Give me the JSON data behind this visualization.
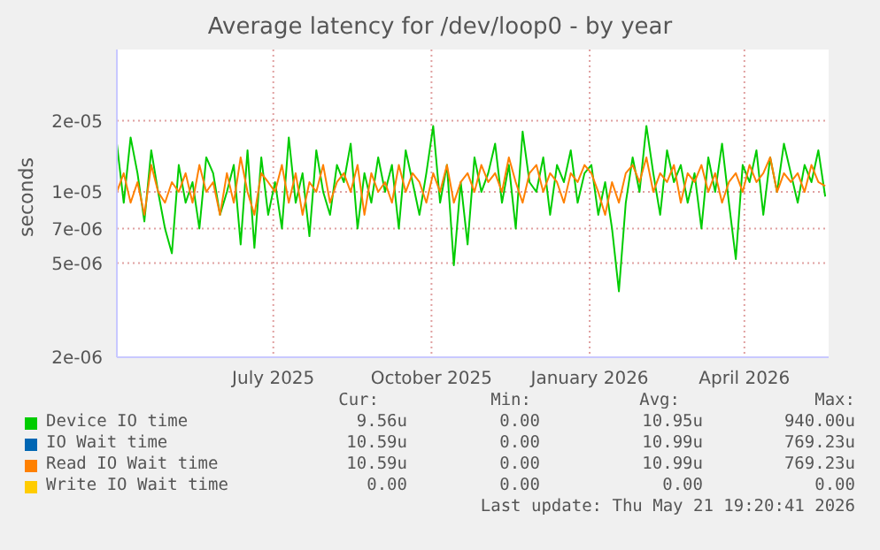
{
  "chart_data": {
    "type": "line",
    "title": "Average latency for /dev/loop0 - by year",
    "ylabel": "seconds",
    "x": [
      "2025-04-01",
      "2025-04-05",
      "2025-04-09",
      "2025-04-13",
      "2025-04-17",
      "2025-04-21",
      "2025-04-25",
      "2025-04-29",
      "2025-05-03",
      "2025-05-07",
      "2025-05-11",
      "2025-05-15",
      "2025-05-19",
      "2025-05-23",
      "2025-05-27",
      "2025-05-31",
      "2025-06-04",
      "2025-06-08",
      "2025-06-12",
      "2025-06-16",
      "2025-06-20",
      "2025-06-24",
      "2025-06-28",
      "2025-07-02",
      "2025-07-06",
      "2025-07-10",
      "2025-07-14",
      "2025-07-18",
      "2025-07-22",
      "2025-07-26",
      "2025-07-30",
      "2025-08-03",
      "2025-08-07",
      "2025-08-11",
      "2025-08-15",
      "2025-08-19",
      "2025-08-23",
      "2025-08-27",
      "2025-08-31",
      "2025-09-04",
      "2025-09-08",
      "2025-09-12",
      "2025-09-16",
      "2025-09-20",
      "2025-09-24",
      "2025-09-28",
      "2025-10-02",
      "2025-10-06",
      "2025-10-10",
      "2025-10-14",
      "2025-10-18",
      "2025-10-22",
      "2025-10-26",
      "2025-10-30",
      "2025-11-03",
      "2025-11-07",
      "2025-11-11",
      "2025-11-15",
      "2025-11-19",
      "2025-11-23",
      "2025-11-27",
      "2025-12-01",
      "2025-12-05",
      "2025-12-09",
      "2025-12-13",
      "2025-12-17",
      "2025-12-21",
      "2025-12-25",
      "2025-12-29",
      "2026-01-02",
      "2026-01-06",
      "2026-01-10",
      "2026-01-14",
      "2026-01-18",
      "2026-01-22",
      "2026-01-26",
      "2026-01-30",
      "2026-02-03",
      "2026-02-07",
      "2026-02-11",
      "2026-02-15",
      "2026-02-19",
      "2026-02-23",
      "2026-02-27",
      "2026-03-03",
      "2026-03-07",
      "2026-03-11",
      "2026-03-15",
      "2026-03-19",
      "2026-03-23",
      "2026-03-27",
      "2026-03-31",
      "2026-04-04",
      "2026-04-08",
      "2026-04-12",
      "2026-04-16",
      "2026-04-20",
      "2026-04-24",
      "2026-04-28",
      "2026-05-02",
      "2026-05-06",
      "2026-05-10",
      "2026-05-14",
      "2026-05-18"
    ],
    "series": [
      {
        "name": "Device IO time",
        "color": "#00cc00",
        "values": [
          1.6e-05,
          9e-06,
          1.7e-05,
          1.2e-05,
          7.5e-06,
          1.5e-05,
          1e-05,
          7e-06,
          5.5e-06,
          1.3e-05,
          9e-06,
          1.1e-05,
          7e-06,
          1.4e-05,
          1.2e-05,
          8e-06,
          1e-05,
          1.3e-05,
          6e-06,
          1.5e-05,
          5.8e-06,
          1.4e-05,
          8e-06,
          1.1e-05,
          7e-06,
          1.7e-05,
          9e-06,
          1.2e-05,
          6.5e-06,
          1.5e-05,
          1e-05,
          8e-06,
          1.3e-05,
          1.1e-05,
          1.6e-05,
          7e-06,
          1.2e-05,
          9e-06,
          1.4e-05,
          1e-05,
          1.3e-05,
          7e-06,
          1.5e-05,
          1.1e-05,
          8e-06,
          1.2e-05,
          1.9e-05,
          9e-06,
          1.3e-05,
          4.9e-06,
          1.1e-05,
          6e-06,
          1.4e-05,
          1e-05,
          1.2e-05,
          1.6e-05,
          9e-06,
          1.3e-05,
          7e-06,
          1.8e-05,
          1.1e-05,
          1e-05,
          1.4e-05,
          8e-06,
          1.3e-05,
          1.1e-05,
          1.5e-05,
          9e-06,
          1.2e-05,
          1.3e-05,
          8e-06,
          1.1e-05,
          7e-06,
          3.8e-06,
          9e-06,
          1.4e-05,
          1e-05,
          1.9e-05,
          1.2e-05,
          8e-06,
          1.5e-05,
          1.1e-05,
          1.3e-05,
          9e-06,
          1.2e-05,
          7e-06,
          1.4e-05,
          1e-05,
          1.6e-05,
          9e-06,
          5.2e-06,
          1.3e-05,
          1.1e-05,
          1.5e-05,
          8e-06,
          1.4e-05,
          1e-05,
          1.6e-05,
          1.2e-05,
          9e-06,
          1.3e-05,
          1.1e-05,
          1.5e-05,
          9.56e-06
        ]
      },
      {
        "name": "IO Wait time",
        "color": "#0066b3",
        "values": [
          null,
          null,
          null,
          null,
          null,
          null,
          null,
          null,
          null,
          null,
          null,
          null,
          null,
          null,
          null,
          null,
          null,
          null,
          null,
          null,
          null,
          null,
          null,
          null,
          null,
          null,
          null,
          null,
          null,
          null,
          null,
          null,
          null,
          null,
          null,
          null,
          null,
          null,
          null,
          null,
          null,
          null,
          null,
          null,
          null,
          null,
          null,
          null,
          null,
          null,
          null,
          null,
          null,
          null,
          null,
          null,
          null,
          null,
          null,
          null,
          null,
          null,
          null,
          null,
          null,
          null,
          null,
          null,
          null,
          null,
          null,
          null,
          null,
          null,
          null,
          null,
          null,
          null,
          null,
          null,
          null,
          null,
          null,
          null,
          null,
          null,
          null,
          null,
          null,
          null,
          null,
          null,
          null,
          null,
          null,
          null,
          null,
          null,
          null,
          null,
          null,
          null,
          null,
          null
        ]
      },
      {
        "name": "Read IO Wait time",
        "color": "#ff8000",
        "values": [
          1e-05,
          1.2e-05,
          9e-06,
          1.1e-05,
          8e-06,
          1.3e-05,
          1e-05,
          9e-06,
          1.1e-05,
          1e-05,
          1.2e-05,
          9e-06,
          1.3e-05,
          1e-05,
          1.1e-05,
          8e-06,
          1.2e-05,
          9e-06,
          1.4e-05,
          1e-05,
          8e-06,
          1.2e-05,
          1.1e-05,
          1e-05,
          1.3e-05,
          9e-06,
          1.2e-05,
          8e-06,
          1.1e-05,
          1e-05,
          1.3e-05,
          9e-06,
          1.1e-05,
          1.2e-05,
          1e-05,
          1.3e-05,
          8e-06,
          1.2e-05,
          1e-05,
          1.1e-05,
          9e-06,
          1.3e-05,
          1e-05,
          1.2e-05,
          1.1e-05,
          9e-06,
          1.2e-05,
          1e-05,
          1.3e-05,
          9e-06,
          1.1e-05,
          1.2e-05,
          1e-05,
          1.3e-05,
          1.1e-05,
          1.2e-05,
          1e-05,
          1.4e-05,
          1.1e-05,
          9e-06,
          1.2e-05,
          1.3e-05,
          1e-05,
          1.2e-05,
          1.1e-05,
          9e-06,
          1.2e-05,
          1.1e-05,
          1.3e-05,
          1.2e-05,
          1e-05,
          8e-06,
          1.1e-05,
          9e-06,
          1.2e-05,
          1.3e-05,
          1.1e-05,
          1.4e-05,
          1e-05,
          1.2e-05,
          1.1e-05,
          1.3e-05,
          9e-06,
          1.2e-05,
          1.1e-05,
          1.3e-05,
          1e-05,
          1.2e-05,
          9e-06,
          1.1e-05,
          1.2e-05,
          1e-05,
          1.3e-05,
          1.1e-05,
          1.2e-05,
          1.4e-05,
          1e-05,
          1.2e-05,
          1.1e-05,
          1.2e-05,
          1e-05,
          1.3e-05,
          1.1e-05,
          1.059e-05
        ]
      },
      {
        "name": "Write IO Wait time",
        "color": "#ffcc00",
        "values": [
          null,
          null,
          null,
          null,
          null,
          null,
          null,
          null,
          null,
          null,
          null,
          null,
          null,
          null,
          null,
          null,
          null,
          null,
          null,
          null,
          null,
          null,
          null,
          null,
          null,
          null,
          null,
          null,
          null,
          null,
          null,
          null,
          null,
          null,
          null,
          null,
          null,
          null,
          null,
          null,
          null,
          null,
          null,
          null,
          null,
          null,
          null,
          null,
          null,
          null,
          null,
          null,
          null,
          null,
          null,
          null,
          null,
          null,
          null,
          null,
          null,
          null,
          null,
          null,
          null,
          null,
          null,
          null,
          null,
          null,
          null,
          null,
          null,
          null,
          null,
          null,
          null,
          null,
          null,
          null,
          null,
          null,
          null,
          null,
          null,
          null,
          null,
          null,
          null,
          null,
          null,
          null,
          null,
          null,
          null,
          null,
          null,
          null,
          null,
          null,
          null,
          null,
          null,
          null
        ]
      }
    ],
    "xlim": [
      "2025-04-01",
      "2026-05-20"
    ],
    "xticks": [
      {
        "value": "2025-07-01",
        "label": "July 2025"
      },
      {
        "value": "2025-10-01",
        "label": "October 2025"
      },
      {
        "value": "2026-01-01",
        "label": "January 2026"
      },
      {
        "value": "2026-04-01",
        "label": "April 2026"
      }
    ],
    "log": "y",
    "ylim": [
      2e-06,
      4e-05
    ],
    "yticks": [
      {
        "value": 2e-06,
        "label": "2e-06"
      },
      {
        "value": 5e-06,
        "label": "5e-06"
      },
      {
        "value": 7e-06,
        "label": "7e-06"
      },
      {
        "value": 1e-05,
        "label": "1e-05"
      },
      {
        "value": 2e-05,
        "label": "2e-05"
      }
    ],
    "grid": true,
    "legend": "bottom",
    "marker": "none",
    "line_style": "solid",
    "annotations": [
      "Cur:",
      "Min:",
      "Avg:",
      "Max:",
      "9.56u",
      "0.00",
      "10.95u",
      "940.00u",
      "10.59u",
      "0.00",
      "10.99u",
      "769.23u",
      "10.59u",
      "0.00",
      "10.99u",
      "769.23u",
      "0.00",
      "0.00",
      "0.00",
      "0.00",
      "Last update: Thu May 21 19:20:41 2026"
    ]
  }
}
